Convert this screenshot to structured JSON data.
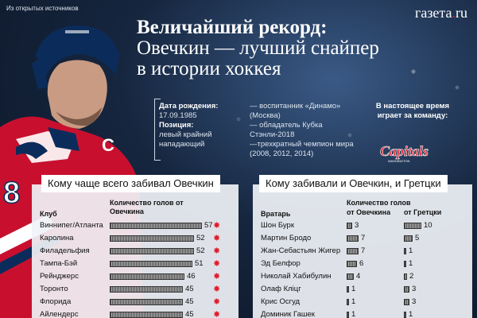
{
  "source": "Из открытых источников",
  "logo": {
    "text": "газета",
    "dot": ".",
    "suffix": "ru"
  },
  "headline": {
    "line1": "Величайший рекорд:",
    "line2": "Овечкин — лучший снайпер",
    "line3": "в истории хоккея"
  },
  "bio": {
    "birth_label": "Дата рождения:",
    "birth_value": "17.09.1985",
    "position_label": "Позиция:",
    "position_value": "левый крайний нападающий",
    "fact1": "— воспитанник «Динамо» (Москва)",
    "fact2": "— обладатель Кубка Стэнли-2018",
    "fact3": "—трехкратный чемпион мира (2008, 2012, 2014)",
    "team_label": "В настоящее время играет за команду:",
    "team_logo_text": "Capitals",
    "team_logo_small": "WASHINGTON"
  },
  "jersey": {
    "letter": "C",
    "number": "8"
  },
  "left_table": {
    "title": "Кому чаще всего забивал Овечкин",
    "col_club": "Клуб",
    "col_goals": "Количество голов от Овечкина",
    "rows": [
      {
        "club": "Виннипег/Атланта",
        "goals": 57,
        "star": true
      },
      {
        "club": "Каролина",
        "goals": 52,
        "star": true
      },
      {
        "club": "Филадельфия",
        "goals": 52,
        "star": true
      },
      {
        "club": "Тампа-Бэй",
        "goals": 51,
        "star": true
      },
      {
        "club": "Рейнджерс",
        "goals": 46,
        "star": true
      },
      {
        "club": "Торонто",
        "goals": 45,
        "star": true
      },
      {
        "club": "Флорида",
        "goals": 45,
        "star": true
      },
      {
        "club": "Айлендерс",
        "goals": 45,
        "star": true
      }
    ]
  },
  "right_table": {
    "title": "Кому забивали и Овечкин, и Гретцки",
    "col_goalie": "Вратарь",
    "col_goals": "Количество голов",
    "col_ovechkin": "от Овечкина",
    "col_gretzky": "от Гретцки",
    "rows": [
      {
        "goalie": "Шон Бурк",
        "ovechkin": 3,
        "gretzky": 10
      },
      {
        "goalie": "Мартин Бродо",
        "ovechkin": 7,
        "gretzky": 5
      },
      {
        "goalie": "Жан-Себастьян Жигер",
        "ovechkin": 7,
        "gretzky": 1
      },
      {
        "goalie": "Эд Белфор",
        "ovechkin": 6,
        "gretzky": 1
      },
      {
        "goalie": "Николай Хабибулин",
        "ovechkin": 4,
        "gretzky": 2
      },
      {
        "goalie": "Олаф Кліцг",
        "ovechkin": 1,
        "gretzky": 3
      },
      {
        "goalie": "Крис Осгуд",
        "ovechkin": 1,
        "gretzky": 3
      },
      {
        "goalie": "Доминик Гашек",
        "ovechkin": 1,
        "gretzky": 1
      }
    ]
  }
}
